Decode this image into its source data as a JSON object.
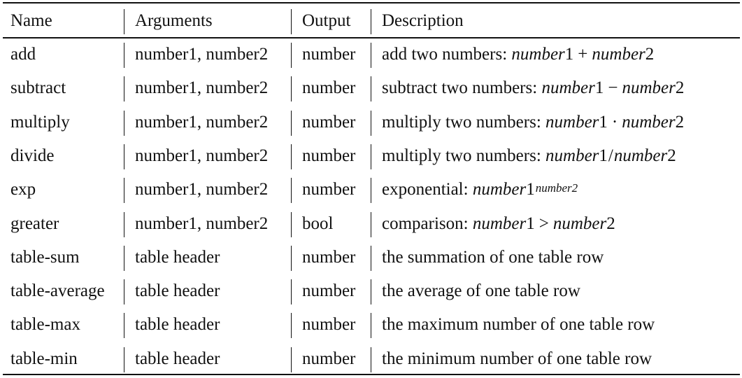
{
  "table": {
    "headers": {
      "name": "Name",
      "arguments": "Arguments",
      "output": "Output",
      "description": "Description"
    },
    "rows": [
      {
        "name": "add",
        "arguments": "number1, number2",
        "output": "number",
        "description": "add two numbers: ",
        "math": {
          "a_var": "number",
          "a_idx": "1",
          "op": "+",
          "b_var": "number",
          "b_idx": "2"
        }
      },
      {
        "name": "subtract",
        "arguments": "number1, number2",
        "output": "number",
        "description": "subtract two numbers: ",
        "math": {
          "a_var": "number",
          "a_idx": "1",
          "op": "−",
          "b_var": "number",
          "b_idx": "2"
        }
      },
      {
        "name": "multiply",
        "arguments": "number1, number2",
        "output": "number",
        "description": "multiply two numbers: ",
        "math": {
          "a_var": "number",
          "a_idx": "1",
          "op": "·",
          "b_var": "number",
          "b_idx": "2"
        }
      },
      {
        "name": "divide",
        "arguments": "number1, number2",
        "output": "number",
        "description": "multiply two numbers: ",
        "math": {
          "a_var": "number",
          "a_idx": "1",
          "op": "/",
          "b_var": "number",
          "b_idx": "2"
        }
      },
      {
        "name": "exp",
        "arguments": "number1, number2",
        "output": "number",
        "description": "exponential: ",
        "math": {
          "a_var": "number",
          "a_idx": "1",
          "sup": "number2"
        }
      },
      {
        "name": "greater",
        "arguments": "number1, number2",
        "output": "bool",
        "description": "comparison: ",
        "math": {
          "a_var": "number",
          "a_idx": "1",
          "op": ">",
          "b_var": "number",
          "b_idx": "2"
        }
      },
      {
        "name": "table-sum",
        "arguments": "table header",
        "output": "number",
        "description": "the summation of one table row"
      },
      {
        "name": "table-average",
        "arguments": "table header",
        "output": "number",
        "description": "the average of one table row"
      },
      {
        "name": "table-max",
        "arguments": "table header",
        "output": "number",
        "description": "the maximum number of one table row"
      },
      {
        "name": "table-min",
        "arguments": "table header",
        "output": "number",
        "description": "the minimum number of one table row"
      }
    ]
  }
}
